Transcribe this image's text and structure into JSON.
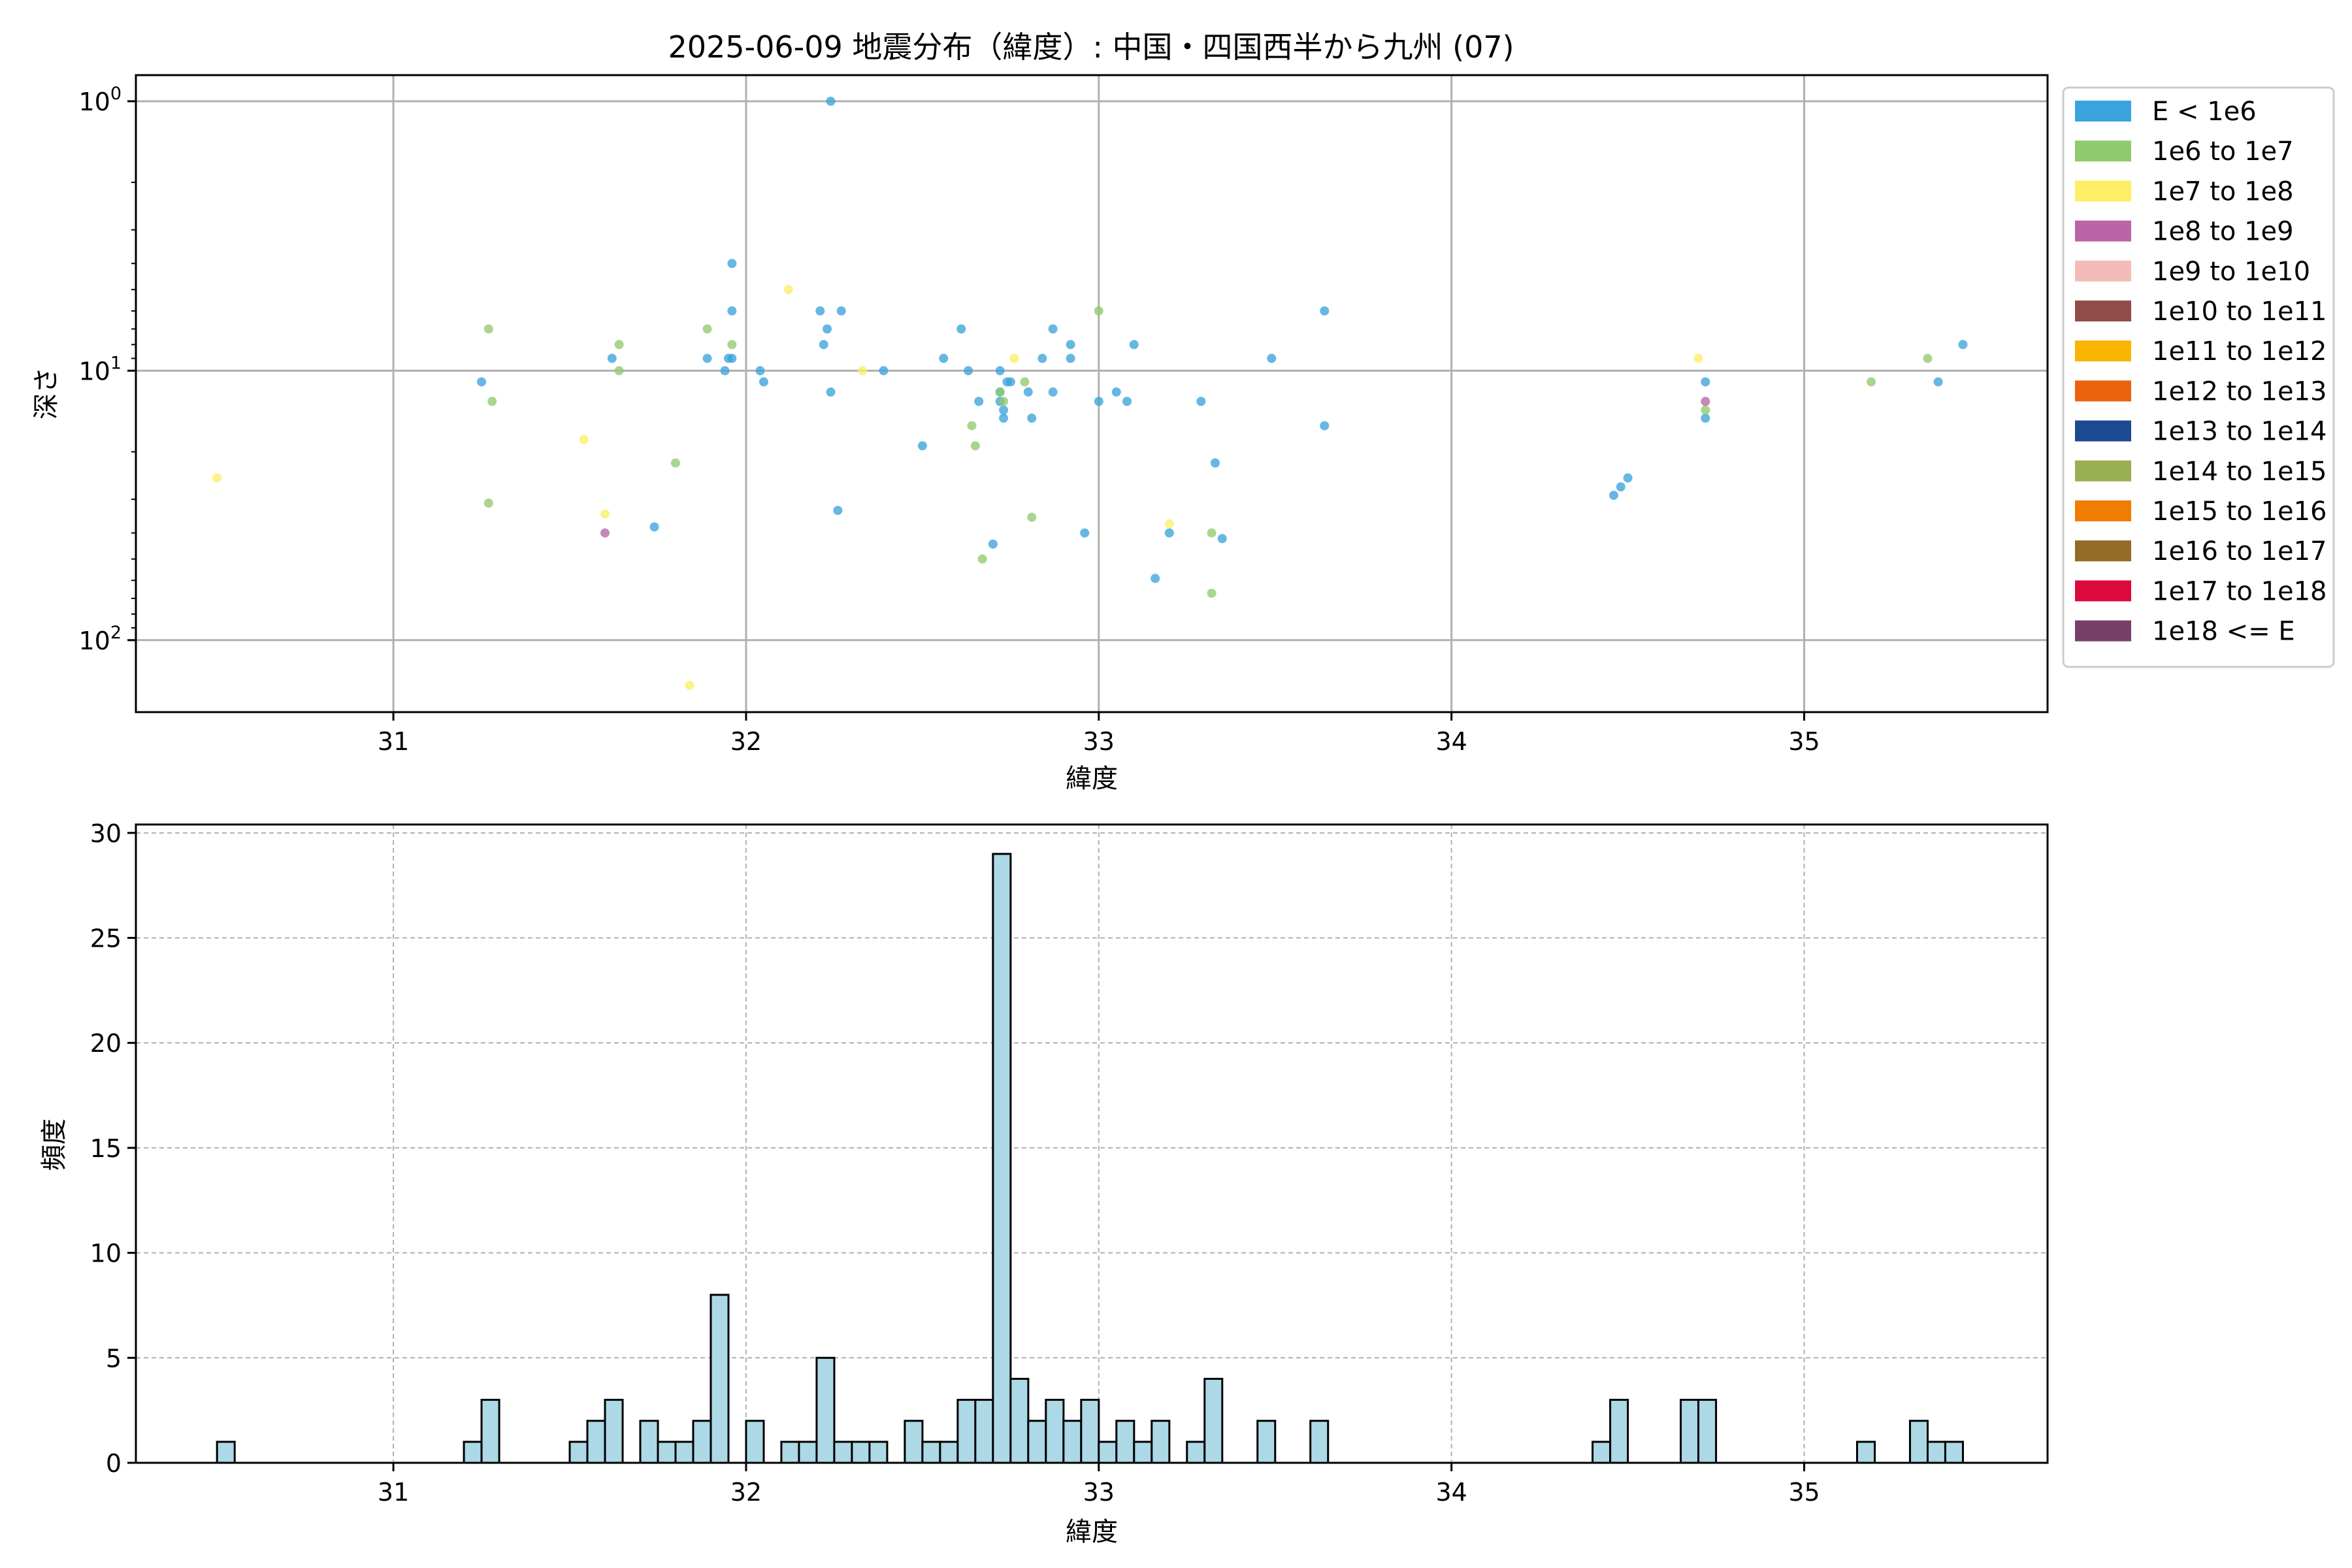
{
  "chart_data": [
    {
      "type": "scatter",
      "title": "2025-06-09 地震分布（緯度）: 中国・四国西半から九州 (07)",
      "xlabel": "緯度",
      "ylabel": "深さ",
      "xlim": [
        30.27,
        35.69
      ],
      "ylim": [
        185,
        0.8
      ],
      "y_scale": "log",
      "y_inverted": true,
      "x_ticks": [
        "31",
        "32",
        "33",
        "34",
        "35"
      ],
      "y_ticks": [
        "10^0",
        "10^1",
        "10^2"
      ],
      "grid": true,
      "legend": {
        "placement": "outside-right",
        "entries": [
          {
            "label": "E < 1e6",
            "color": "#3ba3dc"
          },
          {
            "label": "1e6 to 1e7",
            "color": "#8fca6e"
          },
          {
            "label": "1e7 to 1e8",
            "color": "#fdee66"
          },
          {
            "label": "1e8 to 1e9",
            "color": "#b965a6"
          },
          {
            "label": "1e9 to 1e10",
            "color": "#f4bcb8"
          },
          {
            "label": "1e10 to 1e11",
            "color": "#8f4d48"
          },
          {
            "label": "1e11 to 1e12",
            "color": "#f9b400"
          },
          {
            "label": "1e12 to 1e13",
            "color": "#ea620c"
          },
          {
            "label": "1e13 to 1e14",
            "color": "#1c4a90"
          },
          {
            "label": "1e14 to 1e15",
            "color": "#9aaf52"
          },
          {
            "label": "1e15 to 1e16",
            "color": "#f07c00"
          },
          {
            "label": "1e16 to 1e17",
            "color": "#946b27"
          },
          {
            "label": "1e17 to 1e18",
            "color": "#dc0a3d"
          },
          {
            "label": "1e18 <= E",
            "color": "#773f69"
          }
        ]
      },
      "series": [
        {
          "name": "E < 1e6",
          "points": [
            [
              31.25,
              11
            ],
            [
              31.62,
              9
            ],
            [
              31.74,
              38
            ],
            [
              31.89,
              9
            ],
            [
              31.94,
              10
            ],
            [
              31.95,
              9
            ],
            [
              31.96,
              9
            ],
            [
              31.96,
              6
            ],
            [
              31.96,
              4
            ],
            [
              32.04,
              10
            ],
            [
              32.05,
              11
            ],
            [
              32.21,
              6
            ],
            [
              32.22,
              8
            ],
            [
              32.23,
              7
            ],
            [
              32.24,
              12
            ],
            [
              32.26,
              33
            ],
            [
              32.24,
              1
            ],
            [
              32.27,
              6
            ],
            [
              32.39,
              10
            ],
            [
              32.5,
              19
            ],
            [
              32.56,
              9
            ],
            [
              32.61,
              7
            ],
            [
              32.63,
              10
            ],
            [
              32.66,
              13
            ],
            [
              32.7,
              44
            ],
            [
              32.72,
              10
            ],
            [
              32.72,
              12
            ],
            [
              32.72,
              13
            ],
            [
              32.73,
              14
            ],
            [
              32.73,
              15
            ],
            [
              32.74,
              11
            ],
            [
              32.75,
              11
            ],
            [
              32.8,
              12
            ],
            [
              32.81,
              15
            ],
            [
              32.84,
              9
            ],
            [
              32.87,
              7
            ],
            [
              32.87,
              12
            ],
            [
              32.92,
              8
            ],
            [
              32.92,
              9
            ],
            [
              32.96,
              40
            ],
            [
              33.0,
              13
            ],
            [
              33.05,
              12
            ],
            [
              33.08,
              13
            ],
            [
              33.1,
              8
            ],
            [
              33.16,
              59
            ],
            [
              33.2,
              40
            ],
            [
              33.29,
              13
            ],
            [
              33.33,
              22
            ],
            [
              33.35,
              42
            ],
            [
              33.49,
              9
            ],
            [
              33.64,
              6
            ],
            [
              33.64,
              16
            ],
            [
              34.46,
              29
            ],
            [
              34.48,
              27
            ],
            [
              34.5,
              25
            ],
            [
              34.72,
              11
            ],
            [
              34.72,
              15
            ],
            [
              35.38,
              11
            ],
            [
              35.45,
              8
            ]
          ]
        },
        {
          "name": "1e6 to 1e7",
          "points": [
            [
              31.27,
              7
            ],
            [
              31.27,
              31
            ],
            [
              31.28,
              13
            ],
            [
              31.64,
              8
            ],
            [
              31.64,
              10
            ],
            [
              31.8,
              22
            ],
            [
              31.89,
              7
            ],
            [
              31.96,
              8
            ],
            [
              32.64,
              16
            ],
            [
              32.65,
              19
            ],
            [
              32.67,
              50
            ],
            [
              32.72,
              12
            ],
            [
              32.73,
              13
            ],
            [
              32.79,
              11
            ],
            [
              32.81,
              35
            ],
            [
              33.0,
              6
            ],
            [
              33.32,
              40
            ],
            [
              33.32,
              67
            ],
            [
              34.72,
              14
            ],
            [
              35.19,
              11
            ],
            [
              35.35,
              9
            ]
          ]
        },
        {
          "name": "1e7 to 1e8",
          "points": [
            [
              30.5,
              25
            ],
            [
              31.54,
              18
            ],
            [
              31.6,
              34
            ],
            [
              31.84,
              147
            ],
            [
              32.12,
              5
            ],
            [
              32.33,
              10
            ],
            [
              32.76,
              9
            ],
            [
              33.2,
              37
            ],
            [
              34.7,
              9
            ]
          ]
        },
        {
          "name": "1e8 to 1e9",
          "points": [
            [
              31.6,
              40
            ],
            [
              34.72,
              13
            ]
          ]
        }
      ]
    },
    {
      "type": "bar",
      "xlabel": "緯度",
      "ylabel": "頻度",
      "xlim": [
        30.27,
        35.69
      ],
      "ylim": [
        0,
        30.4
      ],
      "x_ticks": [
        "31",
        "32",
        "33",
        "34",
        "35"
      ],
      "y_ticks": [
        "0",
        "5",
        "10",
        "15",
        "20",
        "25",
        "30"
      ],
      "grid": true,
      "bar_color": "#add8e6",
      "bin_width": 0.0501,
      "bins": [
        [
          30.5,
          1
        ],
        [
          31.2,
          1
        ],
        [
          31.25,
          3
        ],
        [
          31.5,
          1
        ],
        [
          31.55,
          2
        ],
        [
          31.6,
          3
        ],
        [
          31.7,
          2
        ],
        [
          31.75,
          1
        ],
        [
          31.8,
          1
        ],
        [
          31.85,
          2
        ],
        [
          31.9,
          8
        ],
        [
          32.0,
          2
        ],
        [
          32.1,
          1
        ],
        [
          32.15,
          1
        ],
        [
          32.2,
          5
        ],
        [
          32.25,
          1
        ],
        [
          32.3,
          1
        ],
        [
          32.35,
          1
        ],
        [
          32.45,
          2
        ],
        [
          32.5,
          1
        ],
        [
          32.55,
          1
        ],
        [
          32.6,
          3
        ],
        [
          32.65,
          3
        ],
        [
          32.7,
          29
        ],
        [
          32.75,
          4
        ],
        [
          32.8,
          2
        ],
        [
          32.85,
          3
        ],
        [
          32.9,
          2
        ],
        [
          32.95,
          3
        ],
        [
          33.0,
          1
        ],
        [
          33.05,
          2
        ],
        [
          33.1,
          1
        ],
        [
          33.15,
          2
        ],
        [
          33.25,
          1
        ],
        [
          33.3,
          4
        ],
        [
          33.45,
          2
        ],
        [
          33.6,
          2
        ],
        [
          34.4,
          1
        ],
        [
          34.45,
          3
        ],
        [
          34.65,
          3
        ],
        [
          34.7,
          3
        ],
        [
          35.15,
          1
        ],
        [
          35.3,
          2
        ],
        [
          35.35,
          1
        ],
        [
          35.4,
          1
        ]
      ]
    }
  ]
}
